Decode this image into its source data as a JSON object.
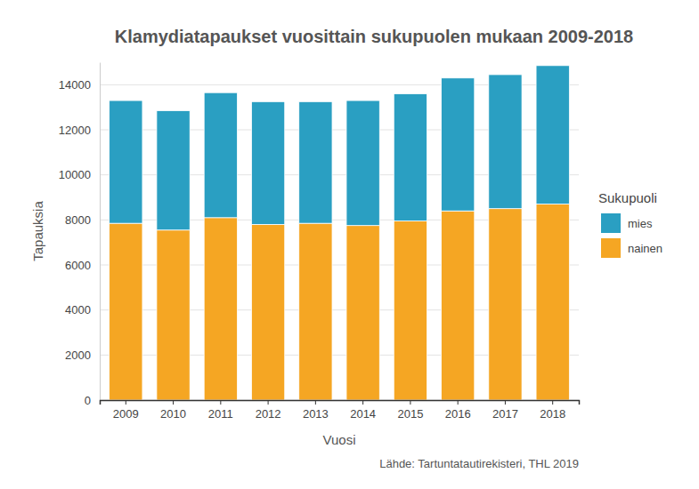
{
  "chart_data": {
    "type": "bar",
    "stacked": true,
    "title": "Klamydiatapaukset vuosittain sukupuolen mukaan 2009-2018",
    "x_label": "Vuosi",
    "y_label": "Tapauksia",
    "legend_title": "Sukupuoli",
    "source": "Lähde: Tartuntatautirekisteri, THL 2019",
    "categories": [
      "2009",
      "2010",
      "2011",
      "2012",
      "2013",
      "2014",
      "2015",
      "2016",
      "2017",
      "2018"
    ],
    "series": [
      {
        "name": "nainen",
        "color": "#f5a623",
        "values": [
          7850,
          7550,
          8100,
          7800,
          7850,
          7750,
          7950,
          8400,
          8500,
          8700
        ]
      },
      {
        "name": "mies",
        "color": "#2a9fc2",
        "values": [
          5450,
          5300,
          5550,
          5450,
          5400,
          5550,
          5650,
          5900,
          5950,
          6150
        ]
      }
    ],
    "ylim": [
      0,
      15000
    ],
    "yticks": [
      0,
      2000,
      4000,
      6000,
      8000,
      10000,
      12000,
      14000
    ],
    "grid": true,
    "legend": "right"
  }
}
